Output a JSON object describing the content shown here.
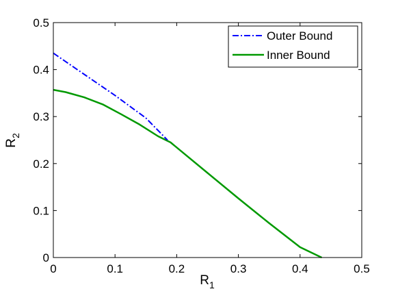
{
  "chart_data": {
    "type": "line",
    "title": "",
    "xlabel": "R",
    "xlabel_sub": "1",
    "ylabel": "R",
    "ylabel_sub": "2",
    "xlim": [
      0,
      0.5
    ],
    "ylim": [
      0,
      0.5
    ],
    "xticks": [
      "0",
      "0.1",
      "0.2",
      "0.3",
      "0.4",
      "0.5"
    ],
    "yticks": [
      "0",
      "0.1",
      "0.2",
      "0.3",
      "0.4",
      "0.5"
    ],
    "grid": false,
    "legend_position": "top-right",
    "series": [
      {
        "name": "Outer Bound",
        "color": "#0000ff",
        "style": "dash-dot",
        "x": [
          0,
          0.05,
          0.1,
          0.15,
          0.185
        ],
        "y": [
          0.435,
          0.39,
          0.345,
          0.297,
          0.25
        ]
      },
      {
        "name": "Inner Bound",
        "color": "#009900",
        "style": "solid",
        "x": [
          0,
          0.02,
          0.05,
          0.08,
          0.11,
          0.14,
          0.17,
          0.19,
          0.25,
          0.3,
          0.35,
          0.4,
          0.435
        ],
        "y": [
          0.357,
          0.352,
          0.341,
          0.326,
          0.305,
          0.283,
          0.258,
          0.245,
          0.18,
          0.126,
          0.073,
          0.022,
          0.0
        ]
      }
    ]
  }
}
